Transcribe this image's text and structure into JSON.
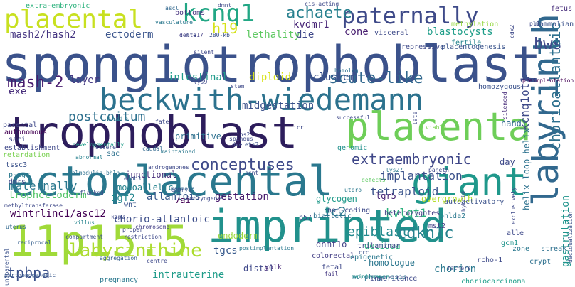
{
  "words": [
    {
      "text": "spongiotrophoblast",
      "color": "#3b528b"
    },
    {
      "text": "trophoblast",
      "color": "#2d1d5c"
    },
    {
      "text": "imprinted",
      "color": "#21918c"
    },
    {
      "text": "ectoplacental",
      "color": "#2a788e"
    },
    {
      "text": "beckwith-wiedemann",
      "color": "#2c728e"
    },
    {
      "text": "placenta",
      "color": "#6ece58"
    },
    {
      "text": "giant",
      "color": "#1f988b"
    },
    {
      "text": "11p15.5",
      "color": "#a0da39"
    },
    {
      "text": "labyrinth",
      "color": "#31688e"
    },
    {
      "text": "placental",
      "color": "#c8e020"
    },
    {
      "text": "paternally",
      "color": "#3e4a89"
    },
    {
      "text": "kcnq1",
      "color": "#22a785"
    },
    {
      "text": "achaete",
      "color": "#27808e"
    },
    {
      "text": "h19",
      "color": "#d5e21a"
    },
    {
      "text": "bws",
      "color": "#3f4889"
    },
    {
      "text": "mash-2",
      "color": "#481c6e"
    },
    {
      "text": "scute-like",
      "color": "#31688e"
    },
    {
      "text": "conceptuses",
      "color": "#3e4a89"
    },
    {
      "text": "extraembryonic",
      "color": "#3f4788"
    },
    {
      "text": "chorioallantoic",
      "color": "#2d708e"
    },
    {
      "text": "labyrinthine",
      "color": "#addc30"
    },
    {
      "text": "kcnq1ot1",
      "color": "#3e4a89"
    },
    {
      "text": "ic2",
      "color": "#2a788e"
    },
    {
      "text": "kvlqt1",
      "color": "#2db27d"
    },
    {
      "text": "tetraploid",
      "color": "#3a548c"
    },
    {
      "text": "cdkn1c",
      "color": "#26828e"
    },
    {
      "text": "epiblast",
      "color": "#23898e"
    },
    {
      "text": "tpbpa",
      "color": "#3b518b"
    },
    {
      "text": "maternally",
      "color": "#2a788e"
    },
    {
      "text": "postcoitum",
      "color": "#2d708e"
    },
    {
      "text": "implantation",
      "color": "#3b518b"
    },
    {
      "text": "mash2/hash2",
      "color": "#453581"
    },
    {
      "text": "ectoderm",
      "color": "#3a548c"
    },
    {
      "text": "kvdmr1",
      "color": "#482677"
    },
    {
      "text": "lethality",
      "color": "#5ec962"
    },
    {
      "text": "die",
      "color": "#3f4889"
    },
    {
      "text": "cone",
      "color": "#481f70"
    },
    {
      "text": "blastocysts",
      "color": "#1f9e89"
    },
    {
      "text": "intestinal",
      "color": "#1e9b8a"
    },
    {
      "text": "diploid",
      "color": "#d8e219"
    },
    {
      "text": "cluster",
      "color": "#3b528b"
    },
    {
      "text": "exe",
      "color": "#472d7b"
    },
    {
      "text": "layer",
      "color": "#443983"
    },
    {
      "text": "midgestation",
      "color": "#3b528b"
    },
    {
      "text": "monoallelic",
      "color": "#26828e"
    },
    {
      "text": "junctional",
      "color": "#472c7a"
    },
    {
      "text": "allantois",
      "color": "#38598c"
    },
    {
      "text": "gestation",
      "color": "#481b6d"
    },
    {
      "text": "lgr5",
      "color": "#482475"
    },
    {
      "text": "glycogen",
      "color": "#1f9a8a"
    },
    {
      "text": "overgrowth",
      "color": "#b5de2b"
    },
    {
      "text": "chorio-allantoic",
      "color": "#3d4e8a"
    },
    {
      "text": "wintrlinc1/asc12",
      "color": "#440154"
    },
    {
      "text": "igf2",
      "color": "#24868e"
    },
    {
      "text": "trophectoderm",
      "color": "#54c568"
    },
    {
      "text": "hand1",
      "color": "#31688e"
    },
    {
      "text": "day",
      "color": "#3e4989"
    },
    {
      "text": "decidua",
      "color": "#29af7f"
    },
    {
      "text": "homologue",
      "color": "#2a768e"
    },
    {
      "text": "chorion",
      "color": "#2a788e"
    },
    {
      "text": "endoderm",
      "color": "#9bd93c"
    },
    {
      "text": "tgcs",
      "color": "#37598c"
    },
    {
      "text": "distal",
      "color": "#3f4889"
    },
    {
      "text": "intrauterine",
      "color": "#1e9c89"
    },
    {
      "text": "yolk",
      "color": "#482878"
    },
    {
      "text": "dnmt1o",
      "color": "#414287"
    },
    {
      "text": "gastrulation",
      "color": "#1f948c"
    },
    {
      "text": "helix-loop-helix",
      "color": "#2c718e"
    },
    {
      "text": "extra-embryonic",
      "color": "#2db27d"
    },
    {
      "text": "bottoms",
      "color": "#46317e"
    },
    {
      "text": "rcho-1",
      "color": "#3e4a89"
    },
    {
      "text": "fetus",
      "color": "#472d7b"
    },
    {
      "text": "methylation",
      "color": "#95d840"
    },
    {
      "text": "fertile",
      "color": "#25848e"
    },
    {
      "text": "primitive",
      "color": "#2d708e"
    },
    {
      "text": "basic",
      "color": "#2a778e"
    },
    {
      "text": "parental",
      "color": "#3f4889"
    },
    {
      "text": "autonomous",
      "color": "#440154"
    },
    {
      "text": "saci",
      "color": "#3f4788"
    },
    {
      "text": "establishment",
      "color": "#3f4889"
    },
    {
      "text": "retardation",
      "color": "#7ad151"
    },
    {
      "text": "tssc3",
      "color": "#3b528b"
    },
    {
      "text": "p-tgc",
      "color": "#2a788e"
    },
    {
      "text": "dmrs",
      "color": "#3e4989"
    },
    {
      "text": "sac",
      "color": "#2d708e"
    },
    {
      "text": "restriction",
      "color": "#3e4989"
    },
    {
      "text": "uterus",
      "color": "#31688e"
    },
    {
      "text": "reciprocal",
      "color": "#355f8d"
    },
    {
      "text": "chromosome",
      "color": "#433e85"
    },
    {
      "text": "parthenogenetic",
      "color": "#38598c"
    },
    {
      "text": "uniparental",
      "color": "#3b528b"
    },
    {
      "text": "methyltransferase",
      "color": "#3e4989"
    },
    {
      "text": "pregnancy",
      "color": "#2a788e"
    },
    {
      "text": "wnt",
      "color": "#3a548c"
    },
    {
      "text": "7ai",
      "color": "#440154"
    },
    {
      "text": "p57",
      "color": "#3e4989"
    },
    {
      "text": "colorectal",
      "color": "#433e85"
    },
    {
      "text": "fetal",
      "color": "#3f4889"
    },
    {
      "text": "fail",
      "color": "#453882"
    },
    {
      "text": "morphogenesis",
      "color": "#2c718e"
    },
    {
      "text": "choriocarcinoma",
      "color": "#1f9e89"
    },
    {
      "text": "zone",
      "color": "#2a788e"
    },
    {
      "text": "alle",
      "color": "#3e4989"
    },
    {
      "text": "crypt",
      "color": "#2d708e"
    },
    {
      "text": "streak",
      "color": "#2d708e"
    },
    {
      "text": "gcm1",
      "color": "#1f948c"
    },
    {
      "text": "phlda2",
      "color": "#2a788e"
    },
    {
      "text": "mst2",
      "color": "#433e85"
    },
    {
      "text": "trilaminar",
      "color": "#3f4889"
    },
    {
      "text": "genomic",
      "color": "#21918c"
    },
    {
      "text": "visceral",
      "color": "#3e4a89"
    },
    {
      "text": "mammalian",
      "color": "#3b528b"
    },
    {
      "text": "homozygous",
      "color": "#3b528b"
    },
    {
      "text": "repressive",
      "color": "#3e4989"
    },
    {
      "text": "preimplantation",
      "color": "#440154"
    },
    {
      "text": "silenced",
      "color": "#472c7a"
    },
    {
      "text": "autoactivatory",
      "color": "#3b528b"
    },
    {
      "text": "heterozygotes",
      "color": "#433e85"
    },
    {
      "text": "epigenetic",
      "color": "#2a788e"
    },
    {
      "text": "non-coding",
      "color": "#3e4989"
    },
    {
      "text": "biallelic",
      "color": "#2d708e"
    },
    {
      "text": "inheritance",
      "color": "#3e4989"
    },
    {
      "text": "exclusively",
      "color": "#3e4989"
    },
    {
      "text": "placentogenesis",
      "color": "#3a548c"
    },
    {
      "text": "homolog",
      "color": "#2c718e"
    },
    {
      "text": "silent",
      "color": "#3f4889"
    },
    {
      "text": "lys9",
      "color": "#3e4989"
    },
    {
      "text": "viable",
      "color": "#7ad151"
    },
    {
      "text": "paneth",
      "color": "#3e4989"
    },
    {
      "text": "embryogenesis",
      "color": "#3e4a89"
    },
    {
      "text": "mammals",
      "color": "#31688e"
    },
    {
      "text": "dve",
      "color": "#3e4989"
    },
    {
      "text": "spinous",
      "color": "#3e4989"
    },
    {
      "text": "maintained",
      "color": "#2a788e"
    },
    {
      "text": "developmentally",
      "color": "#1e9c89"
    },
    {
      "text": "abnormal",
      "color": "#27808e"
    },
    {
      "text": "severe",
      "color": "#3b528b"
    },
    {
      "text": "caudal",
      "color": "#31688e"
    },
    {
      "text": "ephb3",
      "color": "#3a548c"
    },
    {
      "text": "calmodulin-bhlh",
      "color": "#2d708e"
    },
    {
      "text": "androgenones",
      "color": "#3e4989"
    },
    {
      "text": "embryo",
      "color": "#3b528b"
    },
    {
      "text": "icr",
      "color": "#3e4989"
    },
    {
      "text": "successful",
      "color": "#3e4989"
    },
    {
      "text": "compartment",
      "color": "#3b528b"
    },
    {
      "text": "flanked",
      "color": "#3b528b"
    },
    {
      "text": "kip2",
      "color": "#3e4989"
    },
    {
      "text": "villus",
      "color": "#25848e"
    },
    {
      "text": "ascl",
      "color": "#31688e"
    },
    {
      "text": "dmnt",
      "color": "#3e4989"
    },
    {
      "text": "vasculature",
      "color": "#2a788e"
    },
    {
      "text": "delte17",
      "color": "#433e85"
    },
    {
      "text": "280-kb",
      "color": "#3b528b"
    },
    {
      "text": "ins2",
      "color": "#3e4989"
    },
    {
      "text": "ets2",
      "color": "#3b528b"
    },
    {
      "text": "stem",
      "color": "#3e4989"
    },
    {
      "text": "fate",
      "color": "#3e4a89"
    },
    {
      "text": "l-mfa",
      "color": "#3e4989"
    },
    {
      "text": "cis-acting",
      "color": "#3e4989"
    },
    {
      "text": "lys27",
      "color": "#2a788e"
    },
    {
      "text": "defects",
      "color": "#5ec962"
    },
    {
      "text": "aggregation",
      "color": "#355f8d"
    },
    {
      "text": "proper",
      "color": "#3e4989"
    },
    {
      "text": "utero",
      "color": "#2a788e"
    },
    {
      "text": "postimplantation",
      "color": "#2a788e"
    },
    {
      "text": "maintenance",
      "color": "#1f948c"
    },
    {
      "text": "centre",
      "color": "#3e4989"
    },
    {
      "text": "fathers",
      "color": "#3e4989"
    },
    {
      "text": "decidualization",
      "color": "#3b528b"
    },
    {
      "text": "cdx2",
      "color": "#3e4989"
    },
    {
      "text": "pl1",
      "color": "#3e4989"
    },
    {
      "text": "crc",
      "color": "#3b528b"
    },
    {
      "text": "late",
      "color": "#3e4989"
    },
    {
      "text": "hybrid",
      "color": "#3e4989"
    },
    {
      "text": "scnt",
      "color": "#3e4989"
    }
  ]
}
